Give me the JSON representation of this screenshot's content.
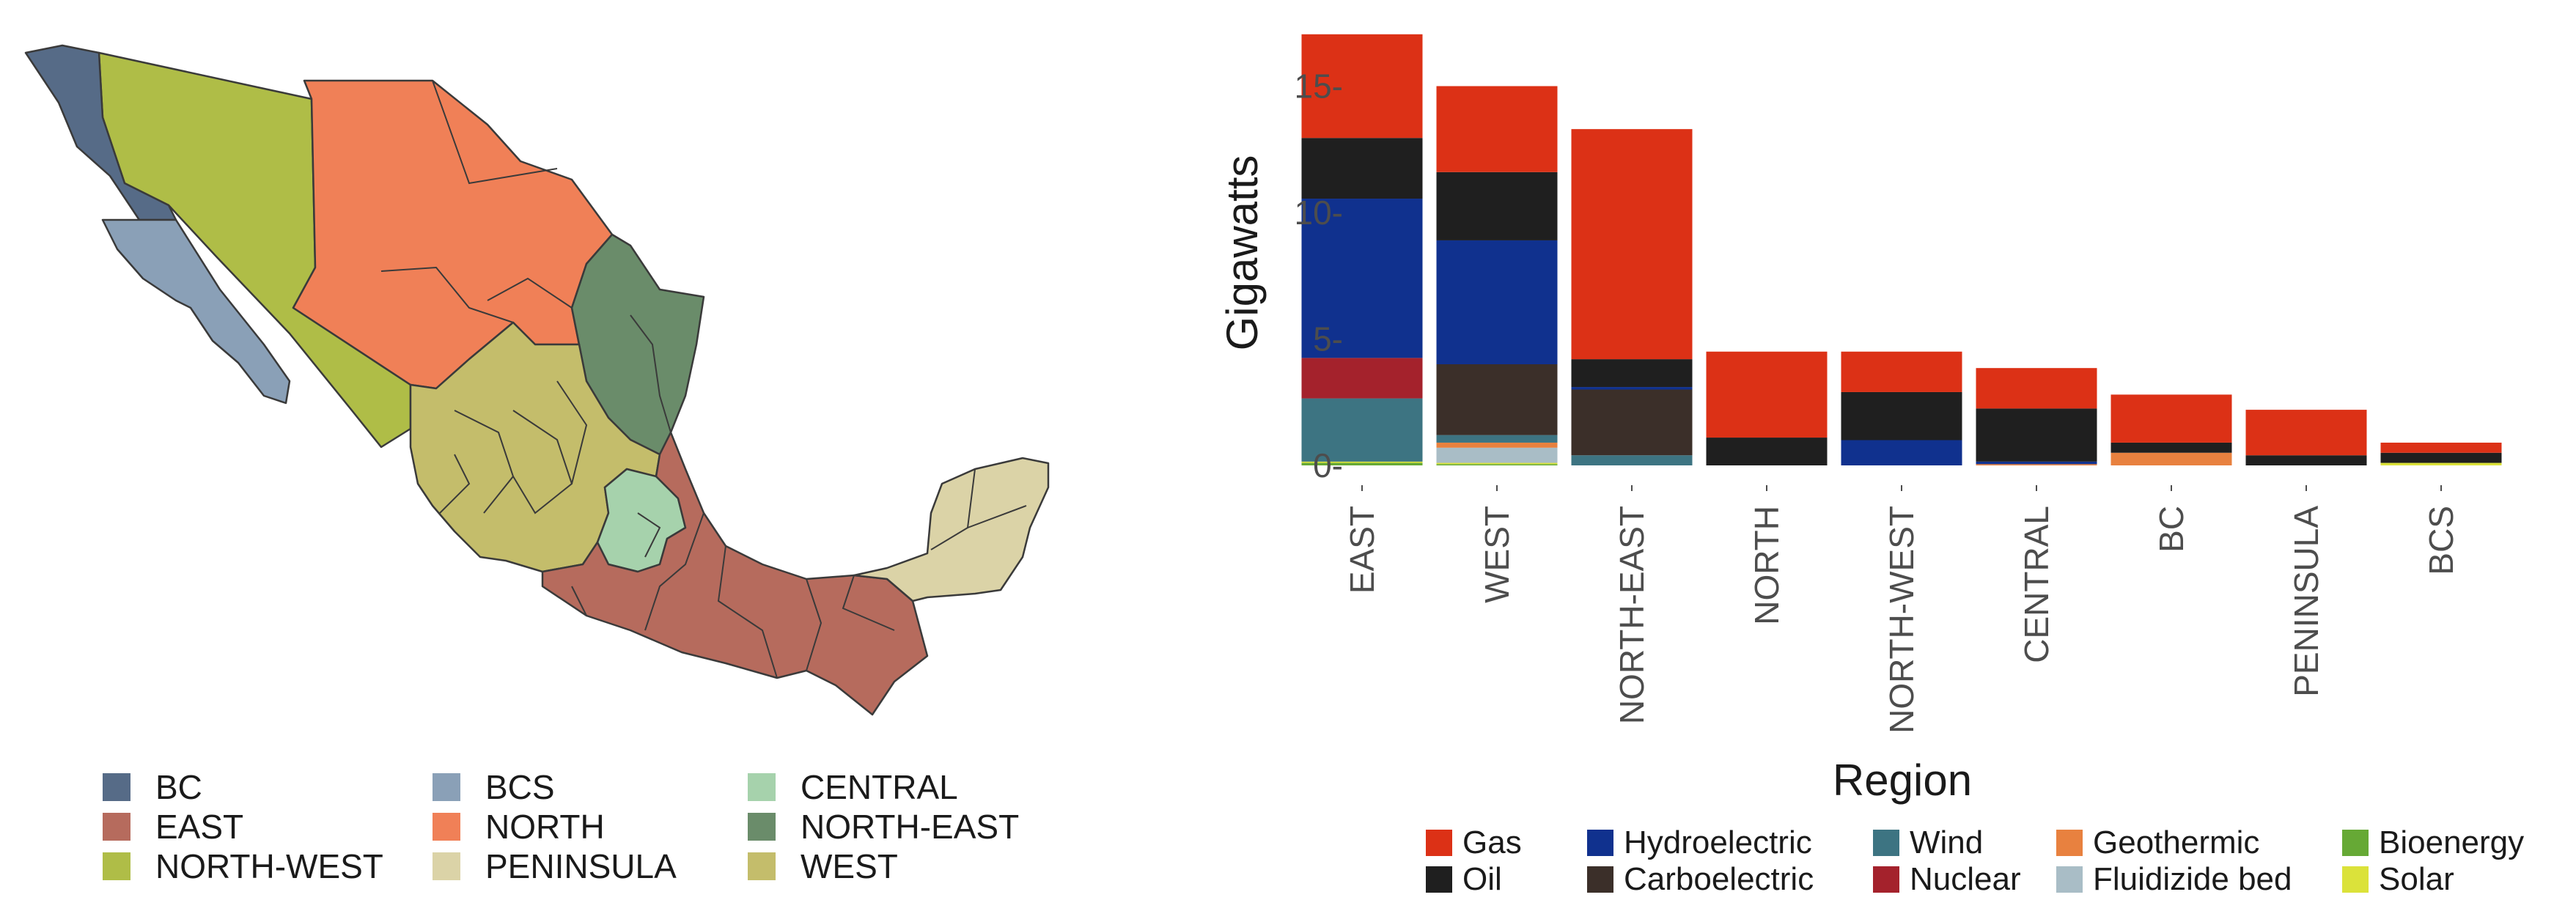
{
  "map_legend": [
    {
      "label": "BC",
      "color": "#566b87"
    },
    {
      "label": "BCS",
      "color": "#8aa0b7"
    },
    {
      "label": "CENTRAL",
      "color": "#a6d2ac"
    },
    {
      "label": "EAST",
      "color": "#b66b5d"
    },
    {
      "label": "NORTH",
      "color": "#f08057"
    },
    {
      "label": "NORTH-EAST",
      "color": "#6a8c6a"
    },
    {
      "label": "NORTH-WEST",
      "color": "#afbd47"
    },
    {
      "label": "PENINSULA",
      "color": "#dbd3a7"
    },
    {
      "label": "WEST",
      "color": "#c4bd6b"
    }
  ],
  "chart_data": {
    "type": "bar",
    "stacked": true,
    "categories": [
      "EAST",
      "WEST",
      "NORTH-EAST",
      "NORTH",
      "NORTH-WEST",
      "CENTRAL",
      "BC",
      "PENINSULA",
      "BCS"
    ],
    "xlabel": "Region",
    "ylabel": "Gigawatts",
    "ylim": [
      0,
      17.2
    ],
    "yticks": [
      0,
      5,
      10,
      15
    ],
    "ytick_labels": [
      "0-",
      "5-",
      "10-",
      "15-"
    ],
    "grid": false,
    "legend_position": "bottom",
    "series": [
      {
        "name": "Bioenergy",
        "color": "#66a935",
        "values": [
          0.1,
          0.05,
          0,
          0,
          0,
          0,
          0,
          0,
          0
        ]
      },
      {
        "name": "Solar",
        "color": "#dbe23a",
        "values": [
          0.05,
          0.05,
          0,
          0,
          0,
          0,
          0,
          0,
          0.1
        ]
      },
      {
        "name": "Fluidizide bed",
        "color": "#a9bdc6",
        "values": [
          0,
          0.6,
          0,
          0,
          0,
          0,
          0,
          0,
          0
        ]
      },
      {
        "name": "Geothermic",
        "color": "#e8813f",
        "values": [
          0,
          0.2,
          0,
          0,
          0,
          0.05,
          0.5,
          0,
          0
        ]
      },
      {
        "name": "Wind",
        "color": "#3d7482",
        "values": [
          2.5,
          0.3,
          0.4,
          0,
          0,
          0,
          0,
          0,
          0
        ]
      },
      {
        "name": "Nuclear",
        "color": "#a4222c",
        "values": [
          1.6,
          0,
          0,
          0,
          0,
          0,
          0,
          0,
          0
        ]
      },
      {
        "name": "Carboelectric",
        "color": "#3b2f29",
        "values": [
          0,
          2.8,
          2.6,
          0,
          0,
          0,
          0,
          0,
          0
        ]
      },
      {
        "name": "Hydroelectric",
        "color": "#10318e",
        "values": [
          6.3,
          4.9,
          0.1,
          0,
          1.0,
          0.1,
          0,
          0,
          0
        ]
      },
      {
        "name": "Oil",
        "color": "#1f1f1f",
        "values": [
          2.4,
          2.7,
          1.1,
          1.1,
          1.9,
          2.1,
          0.4,
          0.4,
          0.4
        ]
      },
      {
        "name": "Gas",
        "color": "#dc3116",
        "values": [
          4.1,
          3.4,
          9.1,
          3.4,
          1.6,
          1.6,
          1.9,
          1.8,
          0.4
        ]
      }
    ]
  },
  "source_legend": [
    "Gas",
    "Hydroelectric",
    "Wind",
    "Geothermic",
    "Bioenergy",
    "Oil",
    "Carboelectric",
    "Nuclear",
    "Fluidizide bed",
    "Solar"
  ]
}
